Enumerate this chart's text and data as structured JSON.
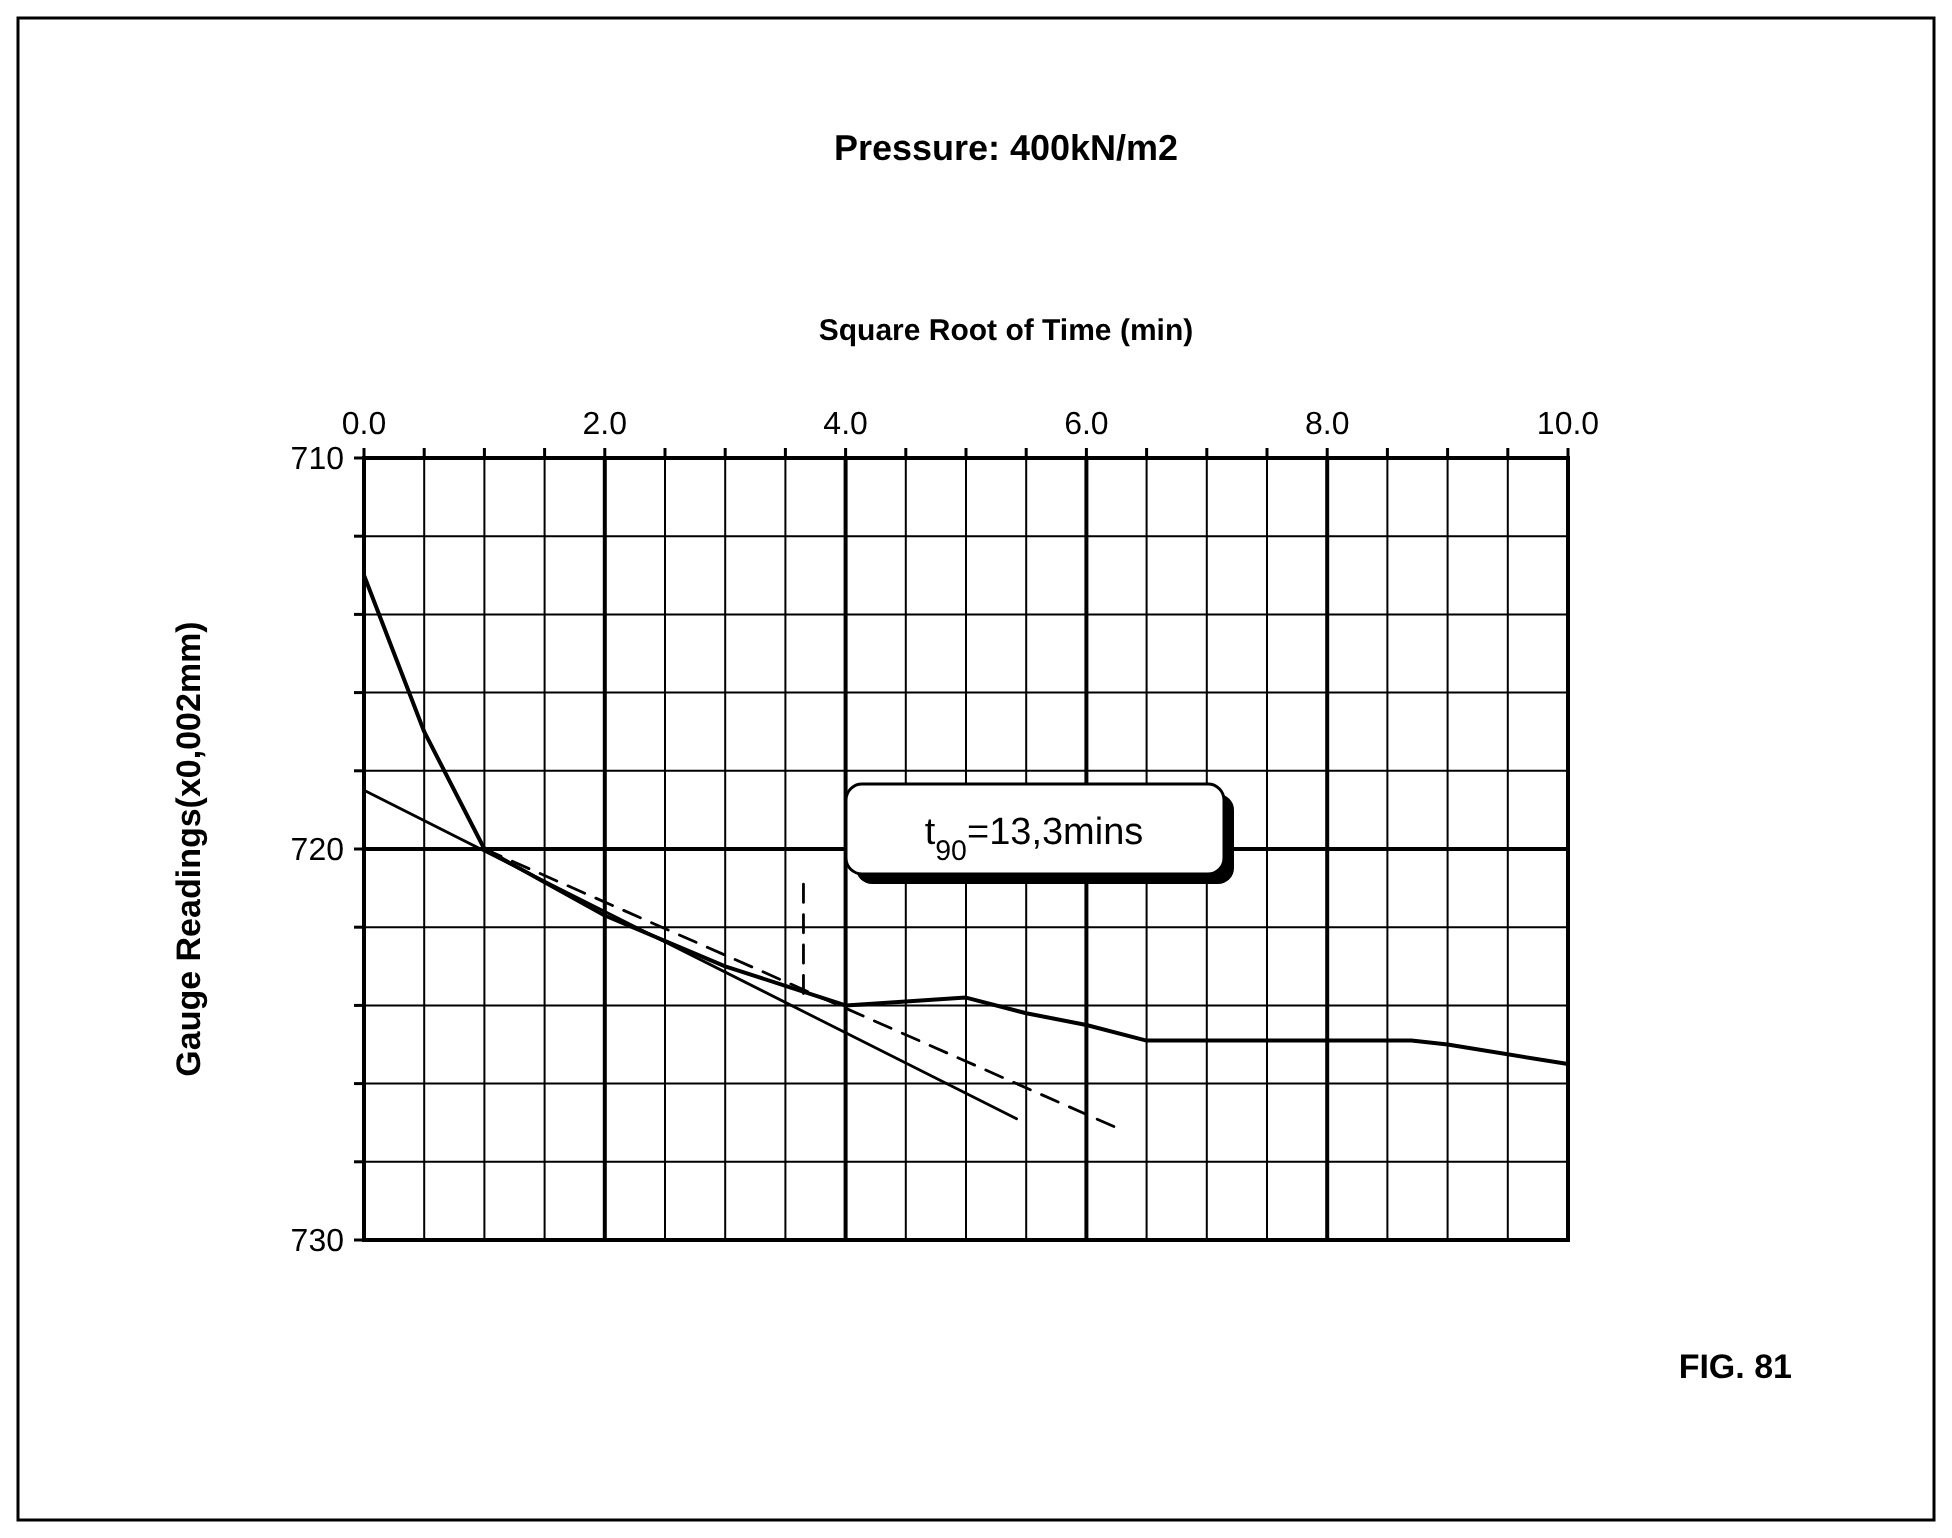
{
  "chart_data": {
    "type": "line",
    "title": "Pressure: 400kN/m2",
    "xlabel": "Square Root of Time (min)",
    "ylabel": "Gauge Readings(x0,002mm)",
    "annotations": [
      "t$_{90}$=13,3mins",
      "FIG. 81"
    ],
    "xlim": [
      0,
      10
    ],
    "xticks": [
      {
        "value": 0,
        "label": "0.0"
      },
      {
        "value": 0.5,
        "label": null
      },
      {
        "value": 1,
        "label": null
      },
      {
        "value": 1.5,
        "label": null
      },
      {
        "value": 2,
        "label": "2.0"
      },
      {
        "value": 2.5,
        "label": null
      },
      {
        "value": 3,
        "label": null
      },
      {
        "value": 3.5,
        "label": null
      },
      {
        "value": 4,
        "label": "4.0"
      },
      {
        "value": 4.5,
        "label": null
      },
      {
        "value": 5,
        "label": null
      },
      {
        "value": 5.5,
        "label": null
      },
      {
        "value": 6,
        "label": "6.0"
      },
      {
        "value": 6.5,
        "label": null
      },
      {
        "value": 7,
        "label": null
      },
      {
        "value": 7.5,
        "label": null
      },
      {
        "value": 8,
        "label": "8.0"
      },
      {
        "value": 8.5,
        "label": null
      },
      {
        "value": 9,
        "label": null
      },
      {
        "value": 9.5,
        "label": null
      },
      {
        "value": 10,
        "label": "10.0"
      }
    ],
    "ylim": [
      730,
      710
    ],
    "yticks": [
      710,
      {
        "value": 712,
        "label": null
      },
      {
        "value": 714,
        "label": null
      },
      {
        "value": 716,
        "label": null
      },
      {
        "value": 718,
        "label": null
      },
      720,
      {
        "value": 722,
        "label": null
      },
      {
        "value": 724,
        "label": null
      },
      {
        "value": 726,
        "label": null
      },
      {
        "value": 728,
        "label": null
      },
      730
    ],
    "grid": true,
    "marker": "none",
    "series": [
      {
        "color": "#000000",
        "x": [
          0,
          0.5,
          1,
          2,
          3,
          3.5,
          4,
          4.5,
          5,
          5.5,
          6,
          6.5,
          7,
          8,
          8.7,
          9,
          10
        ],
        "values": [
          713.0,
          717.0,
          720.0,
          721.7,
          723.0,
          723.5,
          724.0,
          723.9,
          723.8,
          724.2,
          724.5,
          724.9,
          724.9,
          724.9,
          724.9,
          725.0,
          725.5
        ]
      },
      {
        "type": "line",
        "color": "#000000",
        "x": [
          0,
          5.42
        ],
        "values": [
          718.5,
          726.9
        ]
      },
      {
        "type": "line",
        "color": "#000000",
        "line_style": "dashed",
        "x": [
          1,
          6.23
        ],
        "values": [
          720.0,
          727.1
        ]
      },
      {
        "type": "line",
        "color": "#000000",
        "line_style": "dashed",
        "x": [
          3.65,
          3.65
        ],
        "values": [
          720.9,
          723.7
        ]
      }
    ]
  }
}
